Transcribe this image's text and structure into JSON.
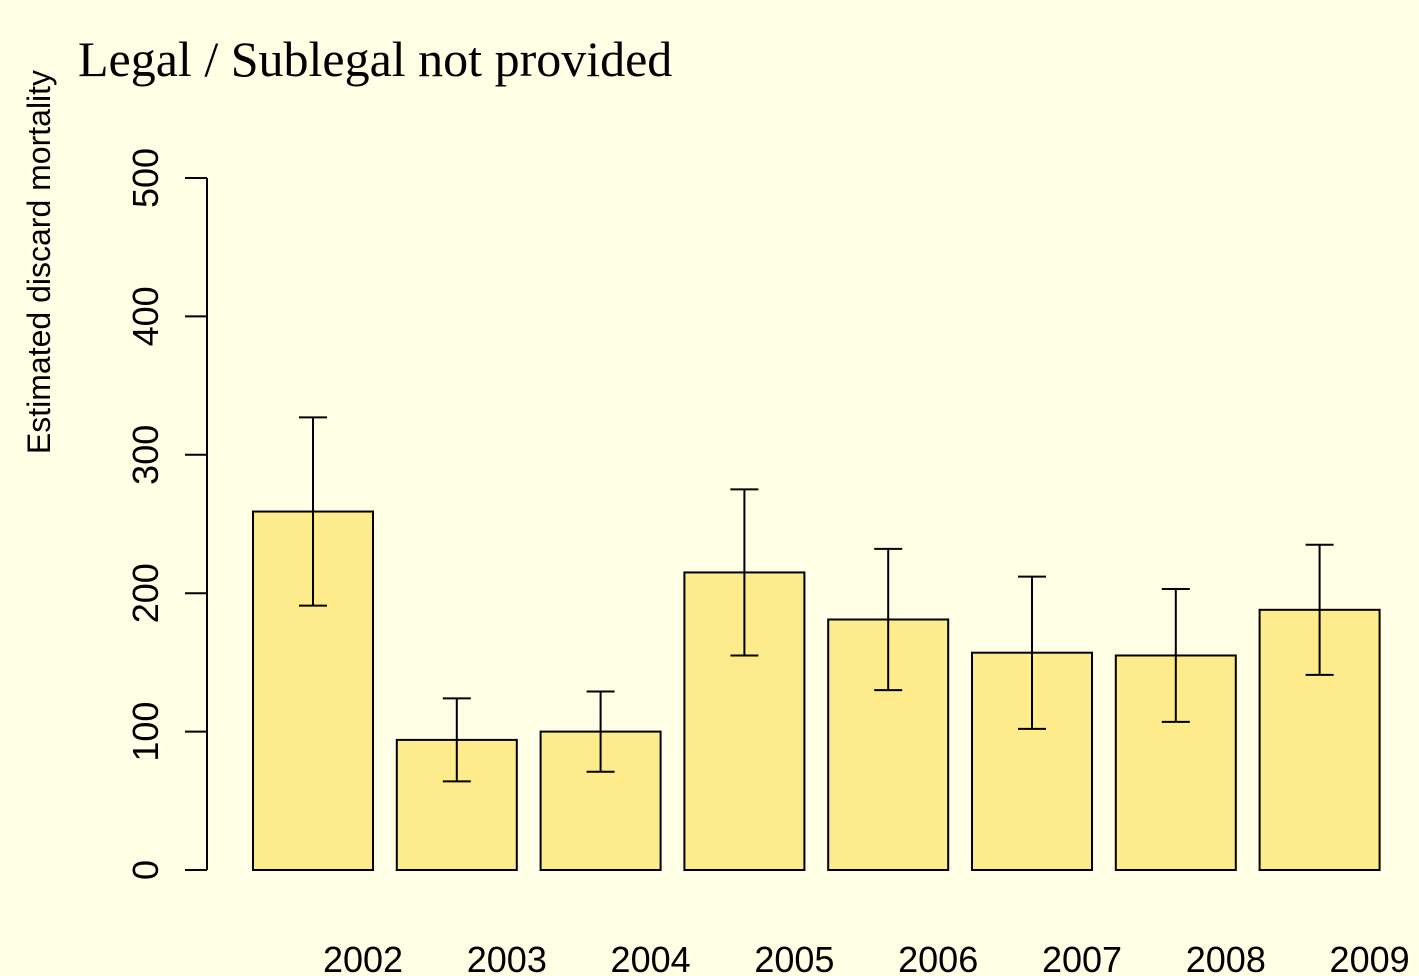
{
  "chart_data": {
    "type": "bar",
    "title": "Legal / Sublegal not provided",
    "y_label": "Estimated discard mortality",
    "categories": [
      "2002",
      "2003",
      "2004",
      "2005",
      "2006",
      "2007",
      "2008",
      "2009"
    ],
    "values": [
      259,
      94,
      100,
      215,
      181,
      157,
      155,
      188
    ],
    "errors": [
      68,
      30,
      29,
      60,
      51,
      55,
      48,
      47
    ],
    "color": "#feec8c",
    "ylim": [
      0,
      500
    ],
    "yticks": [
      0,
      100,
      200,
      300,
      400,
      500
    ]
  }
}
